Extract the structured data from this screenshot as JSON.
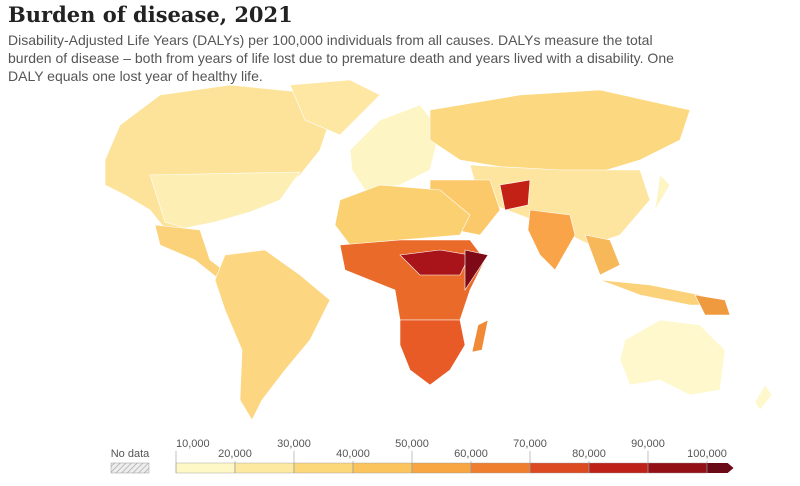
{
  "header": {
    "title": "Burden of disease, 2021",
    "subtitle": "Disability-Adjusted Life Years (DALYs) per 100,000 individuals from all causes. DALYs measure the total burden of disease – both from years of life lost due to premature death and years lived with a disability. One DALY equals one lost year of healthy life."
  },
  "legend": {
    "no_data": "No data",
    "ticks": [
      {
        "value": 10000,
        "label": "10,000"
      },
      {
        "value": 20000,
        "label": "20,000"
      },
      {
        "value": 30000,
        "label": "30,000"
      },
      {
        "value": 40000,
        "label": "40,000"
      },
      {
        "value": 50000,
        "label": "50,000"
      },
      {
        "value": 60000,
        "label": "60,000"
      },
      {
        "value": 70000,
        "label": "70,000"
      },
      {
        "value": 80000,
        "label": "80,000"
      },
      {
        "value": 90000,
        "label": "90,000"
      },
      {
        "value": 100000,
        "label": "100,000"
      }
    ],
    "colors": [
      "#fef7c6",
      "#fde9a0",
      "#fcd87a",
      "#fbc45c",
      "#f7a642",
      "#ef7e2e",
      "#dc4a22",
      "#bd2118",
      "#931016",
      "#6a0a16"
    ]
  }
}
